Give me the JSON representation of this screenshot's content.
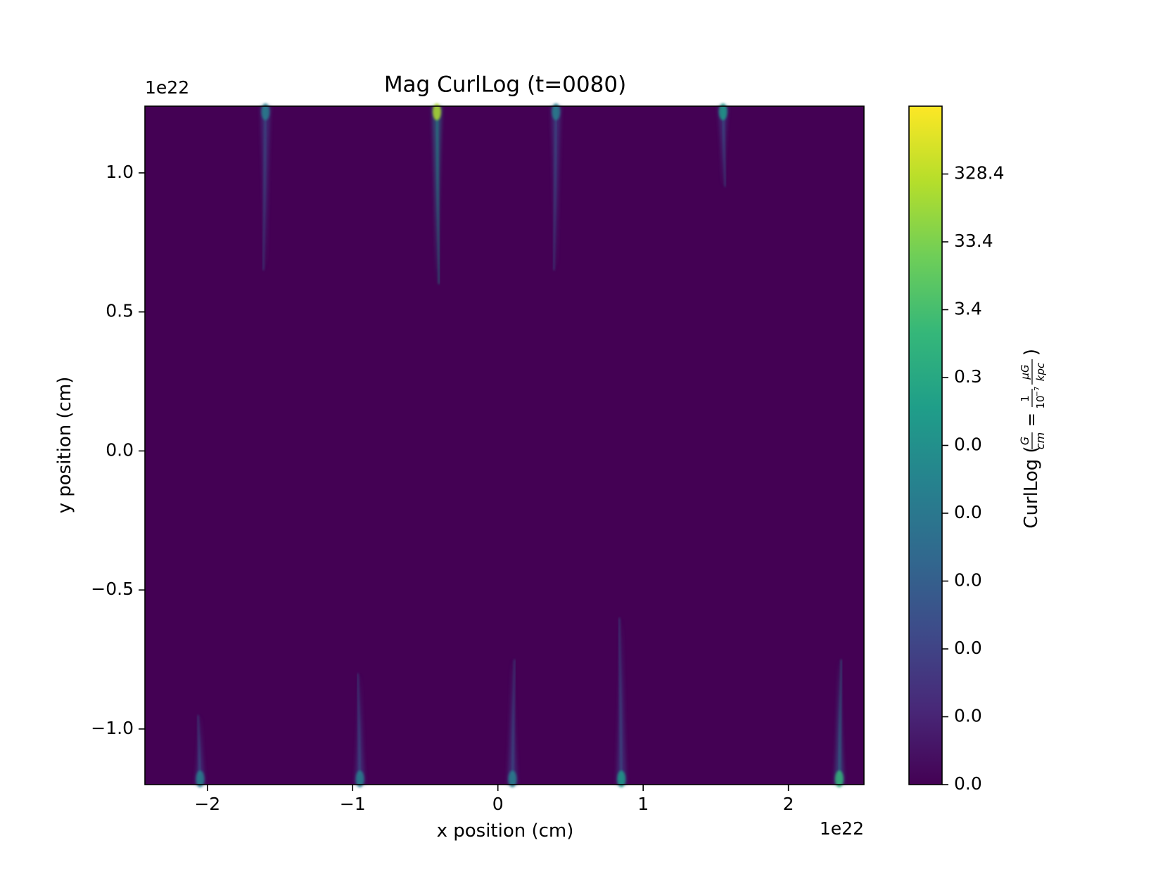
{
  "chart_data": {
    "type": "heatmap",
    "title": "Mag CurlLog (t=0080)",
    "xlabel": "x position (cm)",
    "ylabel": "y position (cm)",
    "x_offset_label": "1e22",
    "y_offset_label": "1e22",
    "xlim": [
      -2.43,
      2.52
    ],
    "ylim": [
      -1.2,
      1.24
    ],
    "x_ticks": [
      -2,
      -1,
      0,
      1,
      2
    ],
    "x_tick_labels": [
      "−2",
      "−1",
      "0",
      "1",
      "2"
    ],
    "y_ticks": [
      -1.0,
      -0.5,
      0.0,
      0.5,
      1.0
    ],
    "y_tick_labels": [
      "−1.0",
      "−0.5",
      "0.0",
      "0.5",
      "1.0"
    ],
    "colorbar": {
      "label": "CurlLog (",
      "label_frac_units": [
        "G",
        "cm"
      ],
      "label_eq": "=",
      "label_frac_conv": [
        "1",
        "μG"
      ],
      "label_conv_den": [
        "10",
        "−7",
        "kpc"
      ],
      "label_close": ")",
      "tick_labels": [
        "0.0",
        "0.0",
        "0.0",
        "0.0",
        "0.0",
        "0.0",
        "0.3",
        "3.4",
        "33.4",
        "328.4"
      ],
      "tick_fractions": [
        0.0,
        0.1,
        0.2,
        0.3,
        0.4,
        0.5,
        0.6,
        0.7,
        0.8,
        0.9
      ],
      "colormap": "viridis",
      "colormap_stops": [
        "#440154",
        "#482878",
        "#3e4a89",
        "#31688e",
        "#26828e",
        "#1f9e89",
        "#35b779",
        "#6ece58",
        "#b5de2b",
        "#fde725"
      ]
    },
    "background_color": "#440154",
    "features": [
      {
        "x": -1.6,
        "y_top": 1.24,
        "y_bottom": 0.65,
        "intensity": 0.45
      },
      {
        "x": -0.42,
        "y_top": 1.24,
        "y_bottom": 0.6,
        "intensity": 0.85
      },
      {
        "x": 0.4,
        "y_top": 1.24,
        "y_bottom": 0.65,
        "intensity": 0.4
      },
      {
        "x": 1.55,
        "y_top": 1.24,
        "y_bottom": 0.95,
        "intensity": 0.5
      },
      {
        "x": -0.95,
        "y_top": -0.8,
        "y_bottom": -1.2,
        "intensity": 0.4
      },
      {
        "x": 0.1,
        "y_top": -0.75,
        "y_bottom": -1.2,
        "intensity": 0.4
      },
      {
        "x": 0.85,
        "y_top": -0.6,
        "y_bottom": -1.2,
        "intensity": 0.5
      },
      {
        "x": 2.35,
        "y_top": -0.75,
        "y_bottom": -1.2,
        "intensity": 0.7
      },
      {
        "x": -2.05,
        "y_top": -0.95,
        "y_bottom": -1.2,
        "intensity": 0.45
      }
    ]
  }
}
